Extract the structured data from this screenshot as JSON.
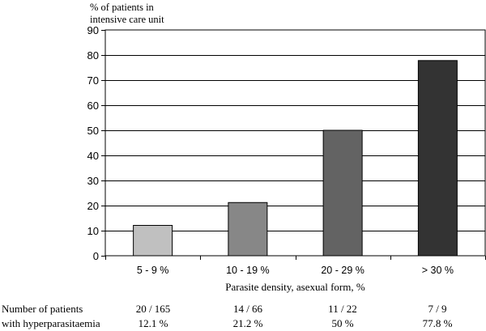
{
  "chart_data": {
    "type": "bar",
    "ylabel_lines": [
      "% of patients in",
      "intensive care unit"
    ],
    "xlabel": "Parasite density, asexual form, %",
    "categories": [
      "5 - 9 %",
      "10 - 19 %",
      "20 - 29 %",
      "> 30 %"
    ],
    "values": [
      12.1,
      21.2,
      50,
      77.8
    ],
    "bar_colors": [
      "#c0c0c0",
      "#878787",
      "#636363",
      "#333333"
    ],
    "ylim": [
      0,
      90
    ],
    "yticks": [
      0,
      10,
      20,
      30,
      40,
      50,
      60,
      70,
      80,
      90
    ],
    "grid": true,
    "legend": false
  },
  "table": {
    "row_labels": [
      "Number of patients",
      "with hyperparasitaemia"
    ],
    "counts": [
      "20 / 165",
      "14 / 66",
      "11 / 22",
      "7 / 9"
    ],
    "percents": [
      "12.1 %",
      "21.2 %",
      "50 %",
      "77.8 %"
    ]
  }
}
